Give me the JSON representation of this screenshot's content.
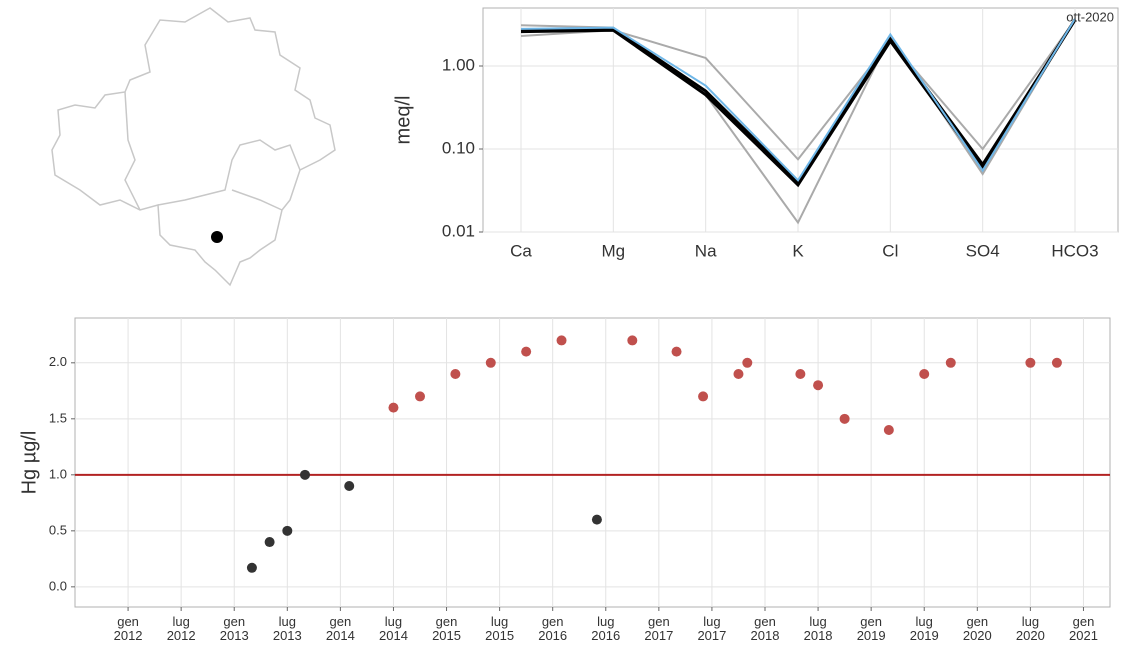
{
  "chart_data": [
    {
      "type": "line",
      "ylabel": "meq/l",
      "log_y": true,
      "grid": true,
      "categories": [
        "Ca",
        "Mg",
        "Na",
        "K",
        "Cl",
        "SO4",
        "HCO3"
      ],
      "ylim": [
        0.01,
        5
      ],
      "yticks": [
        {
          "value": 1,
          "label": "1.00"
        },
        {
          "value": 0.1,
          "label": "0.10"
        },
        {
          "value": 0.01,
          "label": "0.01"
        }
      ],
      "series": [
        {
          "color": "#aaaaaa",
          "values": [
            2.3,
            2.7,
            1.25,
            0.075,
            2.0,
            0.1,
            3.6
          ]
        },
        {
          "color": "#aaaaaa",
          "values": [
            3.1,
            2.9,
            0.45,
            0.013,
            2.3,
            0.05,
            3.7
          ]
        },
        {
          "color": "#000000",
          "values": [
            2.7,
            2.8,
            0.5,
            0.04,
            2.1,
            0.065,
            3.6
          ]
        },
        {
          "color": "#000000",
          "values": [
            2.6,
            2.7,
            0.45,
            0.037,
            2.0,
            0.06,
            3.6
          ]
        },
        {
          "name": "ott-2020",
          "color": "#6fb7e8",
          "values": [
            2.8,
            2.9,
            0.58,
            0.042,
            2.4,
            0.055,
            3.7
          ]
        }
      ]
    },
    {
      "type": "scatter",
      "ylabel": "Hg µg/l",
      "grid": true,
      "xlim": [
        "2011-07",
        "2021-04"
      ],
      "xticks": [
        {
          "value": "2012-01",
          "label": "gen 2012"
        },
        {
          "value": "2012-07",
          "label": "lug 2012"
        },
        {
          "value": "2013-01",
          "label": "gen 2013"
        },
        {
          "value": "2013-07",
          "label": "lug 2013"
        },
        {
          "value": "2014-01",
          "label": "gen 2014"
        },
        {
          "value": "2014-07",
          "label": "lug 2014"
        },
        {
          "value": "2015-01",
          "label": "gen 2015"
        },
        {
          "value": "2015-07",
          "label": "lug 2015"
        },
        {
          "value": "2016-01",
          "label": "gen 2016"
        },
        {
          "value": "2016-07",
          "label": "lug 2016"
        },
        {
          "value": "2017-01",
          "label": "gen 2017"
        },
        {
          "value": "2017-07",
          "label": "lug 2017"
        },
        {
          "value": "2018-01",
          "label": "gen 2018"
        },
        {
          "value": "2018-07",
          "label": "lug 2018"
        },
        {
          "value": "2019-01",
          "label": "gen 2019"
        },
        {
          "value": "2019-07",
          "label": "lug 2019"
        },
        {
          "value": "2020-01",
          "label": "gen 2020"
        },
        {
          "value": "2020-07",
          "label": "lug 2020"
        },
        {
          "value": "2021-01",
          "label": "gen 2021"
        }
      ],
      "ylim": [
        -0.18,
        2.4
      ],
      "yticks": [
        {
          "value": 0,
          "label": "0.0"
        },
        {
          "value": 0.5,
          "label": "0.5"
        },
        {
          "value": 1,
          "label": "1.0"
        },
        {
          "value": 1.5,
          "label": "1.5"
        },
        {
          "value": 2,
          "label": "2.0"
        }
      ],
      "hline": {
        "value": 1,
        "color": "#b22222"
      },
      "series": [
        {
          "color": "#333333",
          "x": [
            "2013-03",
            "2013-05",
            "2013-07",
            "2013-09",
            "2014-02",
            "2016-06"
          ],
          "values": [
            0.17,
            0.4,
            0.5,
            1.0,
            0.9,
            0.6
          ]
        },
        {
          "color": "#c0504d",
          "x": [
            "2014-07",
            "2014-10",
            "2015-02",
            "2015-06",
            "2015-10",
            "2016-02",
            "2016-10",
            "2017-03",
            "2017-06",
            "2017-10",
            "2017-11",
            "2018-05",
            "2018-07",
            "2018-10",
            "2019-03",
            "2019-07",
            "2019-10",
            "2020-07",
            "2020-10"
          ],
          "values": [
            1.6,
            1.7,
            1.9,
            2.0,
            2.1,
            2.2,
            2.2,
            2.1,
            1.7,
            1.9,
            2.0,
            1.9,
            1.8,
            1.5,
            1.4,
            1.9,
            2.0,
            2.0,
            2.0
          ]
        }
      ]
    }
  ]
}
